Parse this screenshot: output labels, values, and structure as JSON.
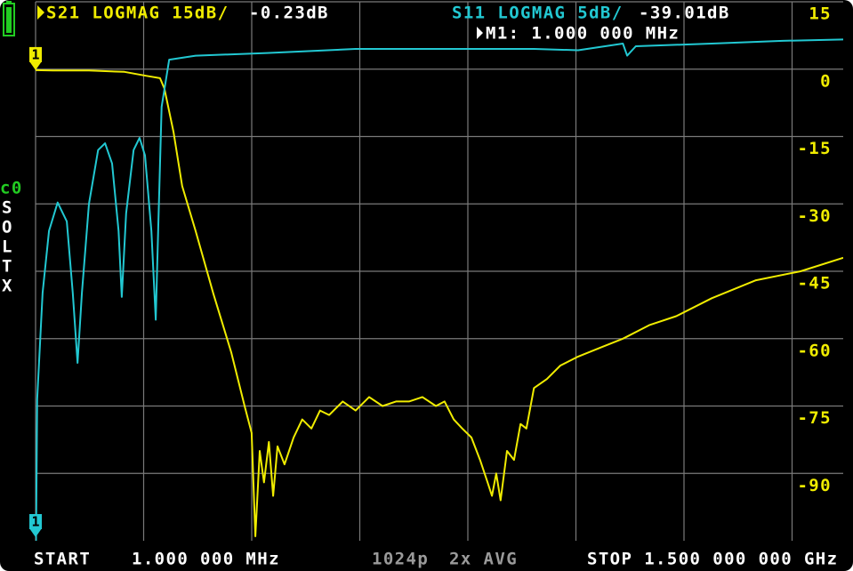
{
  "chart_data": {
    "type": "line",
    "xlim": [
      1,
      1500
    ],
    "ylim": [
      -105,
      15
    ],
    "yticks": [
      15,
      0,
      -15,
      -30,
      -45,
      -60,
      -75,
      -90
    ],
    "y2lim": [
      -35,
      5
    ],
    "grid": true,
    "series": [
      {
        "name": "S21 LOGMAG 15dB/",
        "reading": "-0.23dB",
        "color": "#f0ec00",
        "x": [
          1,
          34,
          100,
          166,
          207,
          232,
          240,
          257,
          273,
          298,
          331,
          364,
          389,
          402,
          409,
          417,
          425,
          434,
          442,
          450,
          463,
          480,
          496,
          513,
          529,
          546,
          571,
          595,
          620,
          645,
          670,
          694,
          719,
          744,
          760,
          777,
          793,
          810,
          826,
          840,
          848,
          856,
          864,
          876,
          889,
          901,
          912,
          926,
          950,
          975,
          1008,
          1049,
          1091,
          1140,
          1190,
          1256,
          1338,
          1421,
          1500
        ],
        "values": [
          -0.23,
          -0.3,
          -0.3,
          -0.6,
          -1.5,
          -2,
          -4.3,
          -14,
          -26,
          -36,
          -50,
          -63,
          -75,
          -81,
          -104,
          -85,
          -92,
          -83,
          -95,
          -84,
          -88,
          -82,
          -78,
          -80,
          -76,
          -77,
          -74,
          -76,
          -73,
          -75,
          -74,
          -74,
          -73,
          -75,
          -74,
          -78,
          -80,
          -82,
          -87,
          -92,
          -95,
          -90,
          -96,
          -85,
          -87,
          -79,
          -80,
          -71,
          -69,
          -66,
          -64,
          -62,
          -60,
          -57,
          -55,
          -51,
          -47,
          -45,
          -42
        ]
      },
      {
        "name": "S11 LOGMAG 5dB/",
        "reading": "-39.01dB",
        "color": "#22c8d2",
        "axis": "y2",
        "x": [
          1,
          4,
          14,
          26,
          42,
          59,
          70,
          79,
          87,
          100,
          117,
          130,
          143,
          155,
          161,
          169,
          183,
          194,
          204,
          216,
          224,
          229,
          235,
          249,
          298,
          430,
          595,
          760,
          926,
          1008,
          1091,
          1099,
          1115,
          1256,
          1388,
          1500
        ],
        "values": [
          -39.01,
          -24.5,
          -16.6,
          -12,
          -9.9,
          -11.3,
          -16.6,
          -21.8,
          -16.6,
          -10,
          -6,
          -5.5,
          -7,
          -12,
          -16.9,
          -10.7,
          -6,
          -5.1,
          -6.4,
          -12,
          -18.6,
          -11.3,
          -2.8,
          0.7,
          1.0,
          1.2,
          1.5,
          1.5,
          1.5,
          1.4,
          1.9,
          1.0,
          1.7,
          1.9,
          2.1,
          2.2
        ]
      }
    ],
    "marker": {
      "label": "M1: 1.000 000 MHz",
      "number": "1"
    },
    "channel": "c0",
    "cal_flags": [
      "S",
      "O",
      "L",
      "T",
      "X"
    ],
    "footer": {
      "start": "START",
      "start_freq": "1.000 000 MHz",
      "points": "1024p",
      "avg": "2x AVG",
      "stop": "STOP 1.500 000 000 GHz"
    }
  }
}
